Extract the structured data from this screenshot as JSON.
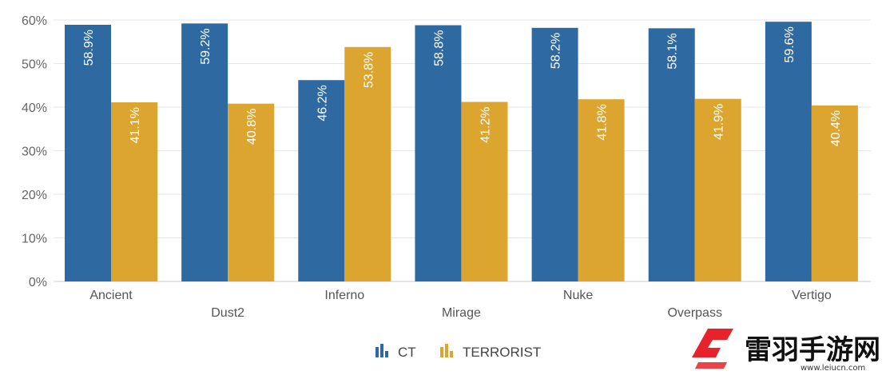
{
  "chart_data": {
    "type": "bar",
    "title": "",
    "xlabel": "",
    "ylabel": "",
    "ylim": [
      0,
      60
    ],
    "yticks": [
      0,
      10,
      20,
      30,
      40,
      50,
      60
    ],
    "ytick_suffix": "%",
    "grid": true,
    "legend_position": "bottom",
    "categories": [
      "Ancient",
      "Dust2",
      "Inferno",
      "Mirage",
      "Nuke",
      "Overpass",
      "Vertigo"
    ],
    "series": [
      {
        "name": "CT",
        "color": "#2e6aa1",
        "values": [
          58.9,
          59.2,
          46.2,
          58.8,
          58.2,
          58.1,
          59.6
        ],
        "labels": [
          "58.9%",
          "59.2%",
          "46.2%",
          "58.8%",
          "58.2%",
          "58.1%",
          "59.6%"
        ]
      },
      {
        "name": "TERRORIST",
        "color": "#dca52f",
        "values": [
          41.1,
          40.8,
          53.8,
          41.2,
          41.8,
          41.9,
          40.4
        ],
        "labels": [
          "41.1%",
          "40.8%",
          "53.8%",
          "41.2%",
          "41.8%",
          "41.9%",
          "40.4%"
        ]
      }
    ]
  },
  "watermark": {
    "text": "雷羽手游网",
    "url": "www.leiucn.com",
    "color": "#e8222a"
  }
}
